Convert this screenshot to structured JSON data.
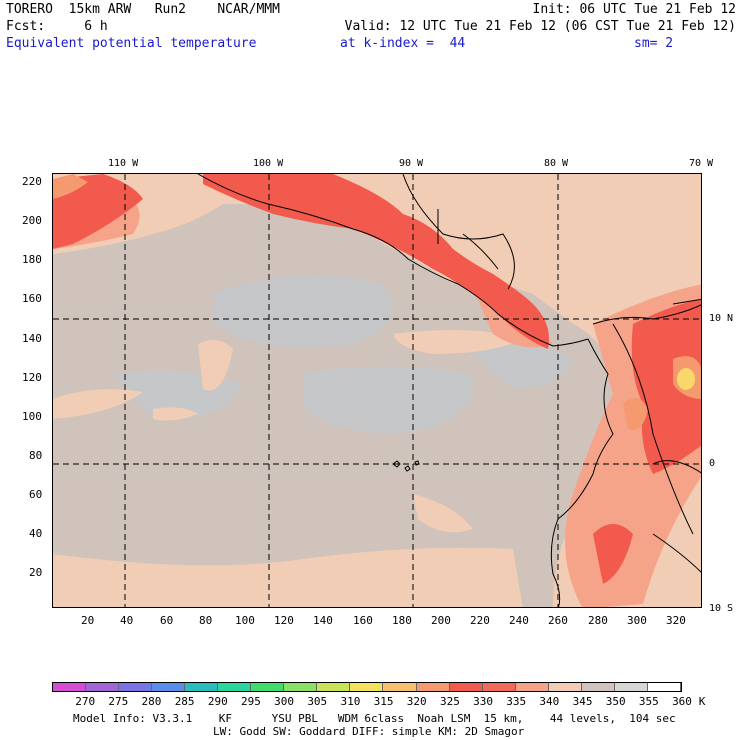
{
  "header": {
    "line1_left": "TORERO  15km ARW   Run2    NCAR/MMM",
    "line1_right": "Init: 06 UTC Tue 21 Feb 12",
    "line2_left": "Fcst:     6 h",
    "line2_right": "Valid: 12 UTC Tue 21 Feb 12 (06 CST Tue 21 Feb 12)",
    "field": "Equivalent potential temperature",
    "level": "at k-index =  44",
    "smooth": "sm= 2"
  },
  "lon_labels": [
    "110 W",
    "100 W",
    "90 W",
    "80 W",
    "70 W"
  ],
  "lat_labels": [
    "10 N",
    "0",
    "10 S"
  ],
  "x_ticks": [
    "20",
    "40",
    "60",
    "80",
    "100",
    "120",
    "140",
    "160",
    "180",
    "200",
    "220",
    "240",
    "260",
    "280",
    "300",
    "320"
  ],
  "y_ticks": [
    "220",
    "200",
    "180",
    "160",
    "140",
    "120",
    "100",
    "80",
    "60",
    "40",
    "20"
  ],
  "colorbar": {
    "labels": [
      "270",
      "275",
      "280",
      "285",
      "290",
      "295",
      "300",
      "305",
      "310",
      "315",
      "320",
      "325",
      "330",
      "335",
      "340",
      "345",
      "350",
      "355",
      "360",
      "K"
    ],
    "colors": [
      "#d24fd2",
      "#a165d8",
      "#7a74e6",
      "#5a8ee8",
      "#2bbcc0",
      "#29d6a0",
      "#3fdc70",
      "#8ae066",
      "#c8e25a",
      "#f2e25e",
      "#f7c070",
      "#f59a6e",
      "#f25a4e",
      "#f06a5c",
      "#f5a48a",
      "#f2cdb5",
      "#cfc3bb",
      "#d6d6d6",
      "#ffffff"
    ]
  },
  "footer": {
    "line1": "Model Info: V3.3.1    KF      YSU PBL   WDM 6class  Noah LSM  15 km,    44 levels,  104 sec",
    "line2": "LW: Godd SW: Goddard DIFF: simple KM: 2D Smagor"
  },
  "map_colors": {
    "ocean_base": "#cfc3bb",
    "gray_patch": "#c5c7c9",
    "peach": "#f2cdb5",
    "salmon": "#f5a48a",
    "red": "#f25a4e",
    "orange": "#f59a6e",
    "yellow": "#f8d86a"
  }
}
